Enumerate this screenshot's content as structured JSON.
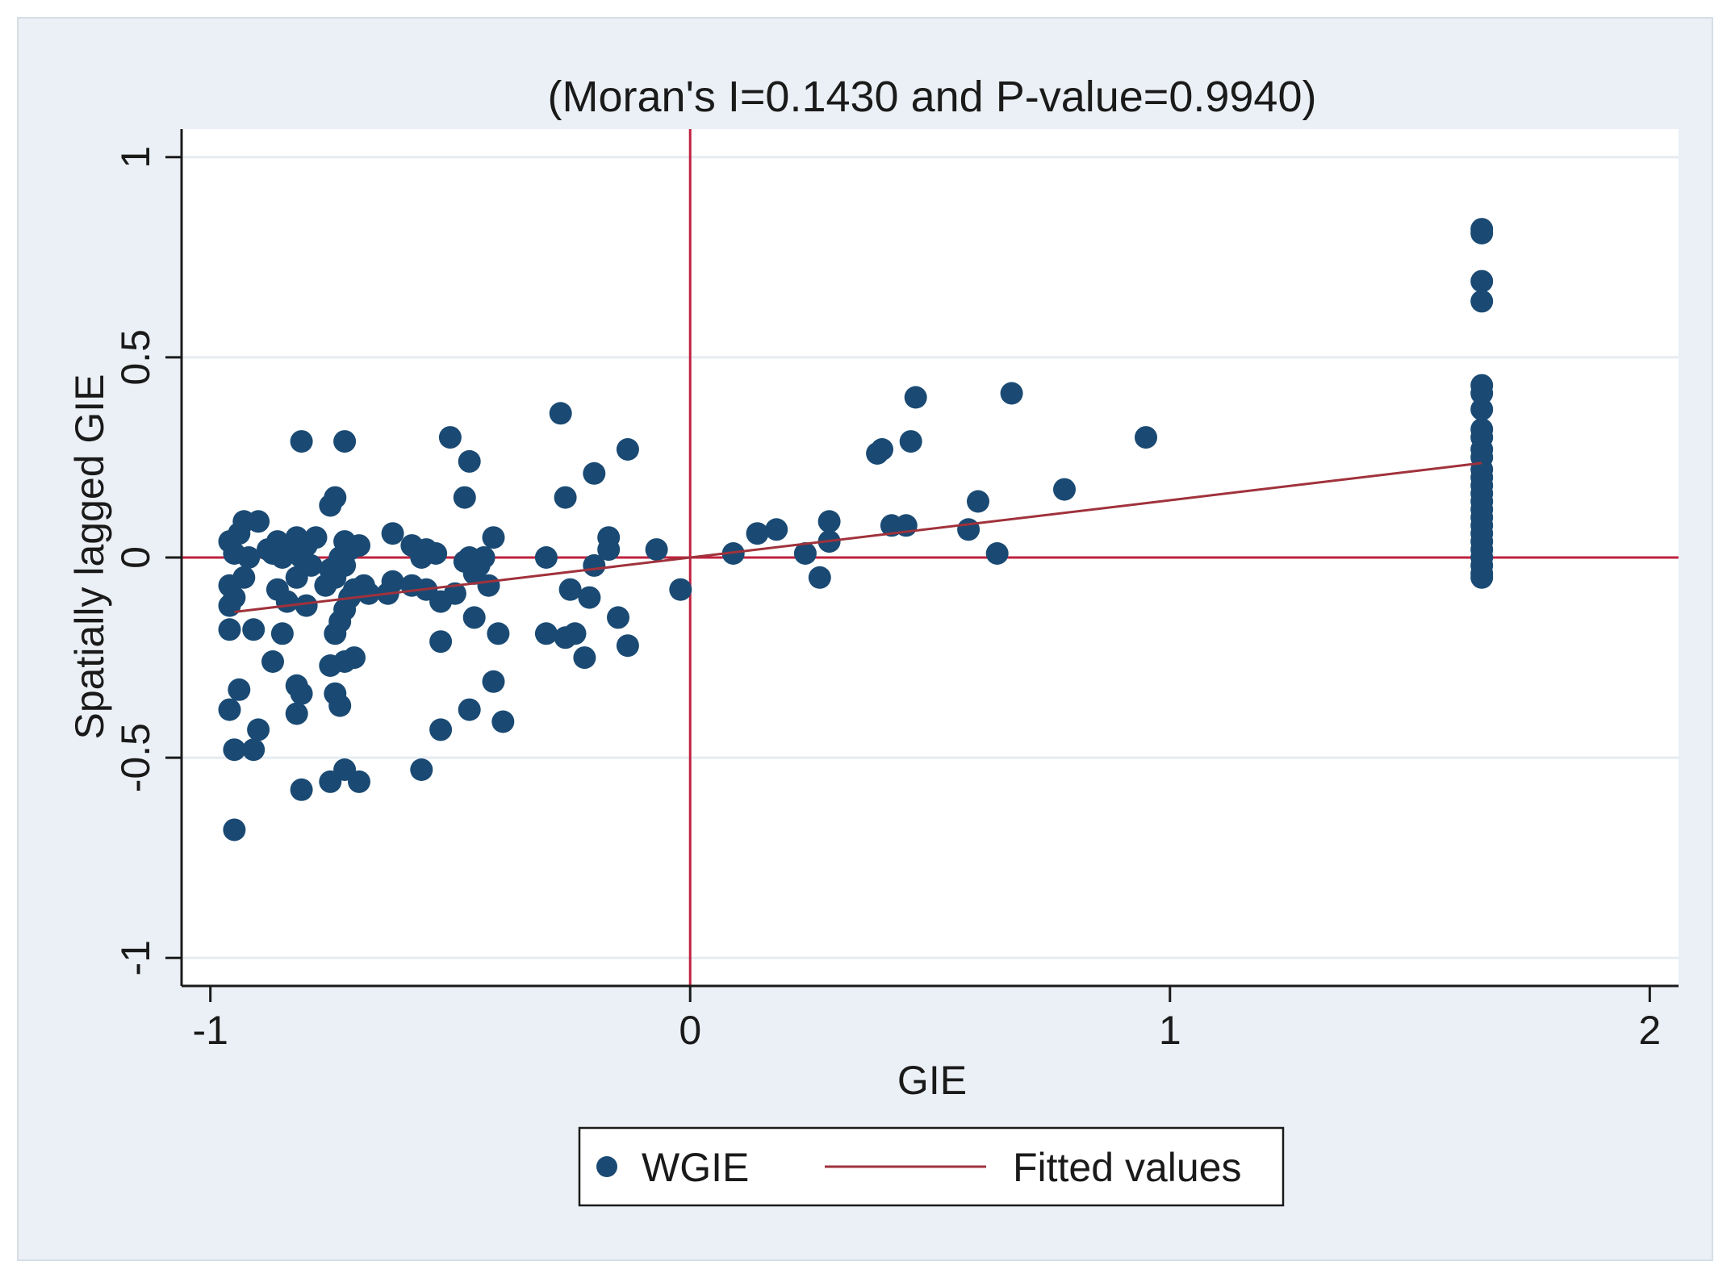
{
  "chart_data": {
    "type": "scatter",
    "title": "(Moran's I=0.1430 and P-value=0.9940)",
    "xlabel": "GIE",
    "ylabel": "Spatially lagged GIE",
    "xlim": [
      -1.06,
      2.06
    ],
    "ylim": [
      -1.07,
      1.07
    ],
    "xticks": [
      -1,
      0,
      1,
      2
    ],
    "xtick_labels": [
      "-1",
      "0",
      "1",
      "2"
    ],
    "yticks": [
      -1,
      -0.5,
      0,
      0.5,
      1
    ],
    "ytick_labels": [
      "-1",
      "-0.5",
      "0",
      "0.5",
      "1"
    ],
    "grid": "horizontal",
    "reference_lines": {
      "x": 0,
      "y": 0,
      "color": "#c0213f"
    },
    "legend": {
      "position": "bottom",
      "entries": [
        "WGIE",
        "Fitted values"
      ]
    },
    "colors": {
      "points": "#1a4a73",
      "fit": "#a0323c",
      "background": "#eaf0f5",
      "grid": "#e6ecf1"
    },
    "series": [
      {
        "name": "WGIE",
        "kind": "scatter",
        "points": [
          [
            -0.95,
            -0.68
          ],
          [
            -0.95,
            -0.48
          ],
          [
            -0.91,
            -0.48
          ],
          [
            -0.96,
            -0.38
          ],
          [
            -0.94,
            -0.33
          ],
          [
            -0.9,
            -0.43
          ],
          [
            -0.96,
            -0.18
          ],
          [
            -0.91,
            -0.18
          ],
          [
            -0.96,
            -0.12
          ],
          [
            -0.96,
            -0.07
          ],
          [
            -0.95,
            -0.1
          ],
          [
            -0.93,
            -0.05
          ],
          [
            -0.96,
            0.04
          ],
          [
            -0.94,
            0.06
          ],
          [
            -0.93,
            0.09
          ],
          [
            -0.9,
            0.09
          ],
          [
            -0.95,
            0.01
          ],
          [
            -0.92,
            0.0
          ],
          [
            -0.88,
            0.02
          ],
          [
            -0.86,
            0.04
          ],
          [
            -0.84,
            0.03
          ],
          [
            -0.87,
            0.01
          ],
          [
            -0.85,
            0.0
          ],
          [
            -0.82,
            0.05
          ],
          [
            -0.8,
            0.03
          ],
          [
            -0.83,
            0.02
          ],
          [
            -0.81,
            0.0
          ],
          [
            -0.78,
            0.05
          ],
          [
            -0.79,
            -0.02
          ],
          [
            -0.82,
            -0.05
          ],
          [
            -0.86,
            -0.08
          ],
          [
            -0.84,
            -0.11
          ],
          [
            -0.8,
            -0.12
          ],
          [
            -0.87,
            -0.26
          ],
          [
            -0.85,
            -0.19
          ],
          [
            -0.82,
            -0.32
          ],
          [
            -0.81,
            -0.34
          ],
          [
            -0.82,
            -0.39
          ],
          [
            -0.81,
            -0.58
          ],
          [
            -0.81,
            0.29
          ],
          [
            -0.75,
            -0.56
          ],
          [
            -0.72,
            -0.53
          ],
          [
            -0.69,
            -0.56
          ],
          [
            -0.73,
            -0.37
          ],
          [
            -0.74,
            -0.34
          ],
          [
            -0.72,
            -0.26
          ],
          [
            -0.7,
            -0.25
          ],
          [
            -0.75,
            -0.27
          ],
          [
            -0.74,
            -0.19
          ],
          [
            -0.73,
            -0.16
          ],
          [
            -0.72,
            -0.13
          ],
          [
            -0.71,
            -0.1
          ],
          [
            -0.76,
            -0.07
          ],
          [
            -0.74,
            -0.05
          ],
          [
            -0.7,
            -0.08
          ],
          [
            -0.68,
            -0.07
          ],
          [
            -0.72,
            -0.02
          ],
          [
            -0.73,
            0.0
          ],
          [
            -0.71,
            0.02
          ],
          [
            -0.69,
            0.03
          ],
          [
            -0.72,
            0.04
          ],
          [
            -0.75,
            -0.03
          ],
          [
            -0.75,
            0.13
          ],
          [
            -0.74,
            0.15
          ],
          [
            -0.72,
            0.29
          ],
          [
            -0.67,
            -0.09
          ],
          [
            -0.63,
            -0.09
          ],
          [
            -0.62,
            -0.06
          ],
          [
            -0.58,
            -0.07
          ],
          [
            -0.55,
            -0.08
          ],
          [
            -0.62,
            0.06
          ],
          [
            -0.58,
            0.03
          ],
          [
            -0.56,
            0.0
          ],
          [
            -0.55,
            0.02
          ],
          [
            -0.53,
            0.01
          ],
          [
            -0.52,
            -0.11
          ],
          [
            -0.49,
            -0.09
          ],
          [
            -0.45,
            -0.04
          ],
          [
            -0.52,
            -0.21
          ],
          [
            -0.47,
            -0.01
          ],
          [
            -0.46,
            0.0
          ],
          [
            -0.43,
            0.0
          ],
          [
            -0.44,
            -0.02
          ],
          [
            -0.42,
            -0.07
          ],
          [
            -0.45,
            -0.15
          ],
          [
            -0.4,
            -0.19
          ],
          [
            -0.41,
            -0.31
          ],
          [
            -0.39,
            -0.41
          ],
          [
            -0.46,
            -0.38
          ],
          [
            -0.52,
            -0.43
          ],
          [
            -0.56,
            -0.53
          ],
          [
            -0.5,
            0.3
          ],
          [
            -0.46,
            0.24
          ],
          [
            -0.47,
            0.15
          ],
          [
            -0.41,
            0.05
          ],
          [
            -0.3,
            0.0
          ],
          [
            -0.3,
            -0.19
          ],
          [
            -0.26,
            -0.2
          ],
          [
            -0.24,
            -0.19
          ],
          [
            -0.22,
            -0.25
          ],
          [
            -0.25,
            -0.08
          ],
          [
            -0.21,
            -0.1
          ],
          [
            -0.2,
            -0.02
          ],
          [
            -0.17,
            0.02
          ],
          [
            -0.17,
            0.05
          ],
          [
            -0.15,
            -0.15
          ],
          [
            -0.13,
            -0.22
          ],
          [
            -0.26,
            0.15
          ],
          [
            -0.27,
            0.36
          ],
          [
            -0.2,
            0.21
          ],
          [
            -0.13,
            0.27
          ],
          [
            -0.07,
            0.02
          ],
          [
            -0.02,
            -0.08
          ],
          [
            0.09,
            0.01
          ],
          [
            0.14,
            0.06
          ],
          [
            0.18,
            0.07
          ],
          [
            0.24,
            0.01
          ],
          [
            0.27,
            -0.05
          ],
          [
            0.29,
            0.04
          ],
          [
            0.29,
            0.09
          ],
          [
            0.39,
            0.26
          ],
          [
            0.4,
            0.27
          ],
          [
            0.42,
            0.08
          ],
          [
            0.45,
            0.08
          ],
          [
            0.46,
            0.29
          ],
          [
            0.47,
            0.4
          ],
          [
            0.58,
            0.07
          ],
          [
            0.6,
            0.14
          ],
          [
            0.64,
            0.01
          ],
          [
            0.67,
            0.41
          ],
          [
            0.78,
            0.17
          ],
          [
            0.95,
            0.3
          ],
          [
            1.65,
            0.82
          ],
          [
            1.65,
            0.81
          ],
          [
            1.65,
            0.69
          ],
          [
            1.65,
            0.64
          ],
          [
            1.65,
            0.43
          ],
          [
            1.65,
            0.41
          ],
          [
            1.65,
            0.37
          ],
          [
            1.65,
            0.32
          ],
          [
            1.65,
            0.3
          ],
          [
            1.65,
            0.27
          ],
          [
            1.65,
            0.25
          ],
          [
            1.65,
            0.22
          ],
          [
            1.65,
            0.2
          ],
          [
            1.65,
            0.18
          ],
          [
            1.65,
            0.16
          ],
          [
            1.65,
            0.14
          ],
          [
            1.65,
            0.12
          ],
          [
            1.65,
            0.1
          ],
          [
            1.65,
            0.08
          ],
          [
            1.65,
            0.06
          ],
          [
            1.65,
            0.04
          ],
          [
            1.65,
            0.02
          ],
          [
            1.65,
            0.0
          ],
          [
            1.65,
            -0.02
          ],
          [
            1.65,
            -0.04
          ],
          [
            1.65,
            -0.05
          ]
        ]
      },
      {
        "name": "Fitted values",
        "kind": "line",
        "points": [
          [
            -0.95,
            -0.136
          ],
          [
            1.65,
            0.236
          ]
        ]
      }
    ]
  }
}
